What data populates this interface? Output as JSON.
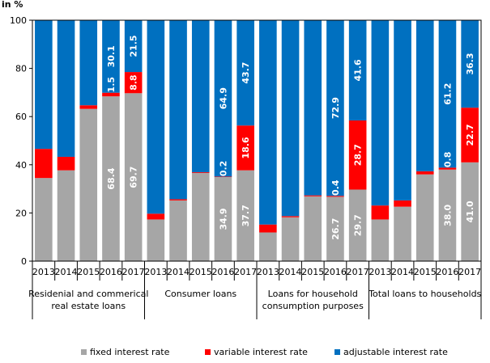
{
  "chart_data": {
    "type": "bar",
    "stacked": true,
    "unit_label": "in %",
    "ylim": [
      0,
      100
    ],
    "yticks": [
      0,
      20,
      40,
      60,
      80,
      100
    ],
    "grid": false,
    "legend_position": "bottom",
    "groups": [
      {
        "label": "Residenial and commerical real estate loans",
        "label_lines": [
          "Residenial and commerical",
          "real estate loans"
        ],
        "categories": [
          "2013",
          "2014",
          "2015",
          "2016",
          "2017"
        ]
      },
      {
        "label": "Consumer loans",
        "label_lines": [
          "Consumer loans"
        ],
        "categories": [
          "2013",
          "2014",
          "2015",
          "2016",
          "2017"
        ]
      },
      {
        "label": "Loans for household consumption purposes",
        "label_lines": [
          "Loans for household",
          "consumption purposes"
        ],
        "categories": [
          "2013",
          "2014",
          "2015",
          "2016",
          "2017"
        ]
      },
      {
        "label": "Total loans to households",
        "label_lines": [
          "Total loans to households"
        ],
        "categories": [
          "2013",
          "2014",
          "2015",
          "2016",
          "2017"
        ]
      }
    ],
    "series": [
      {
        "name": "fixed interest rate",
        "color": "#a6a6a6",
        "values": [
          34.5,
          37.7,
          63.2,
          68.4,
          69.7,
          17.3,
          25.2,
          36.6,
          34.9,
          37.7,
          11.9,
          18.2,
          26.9,
          26.7,
          29.7,
          17.3,
          22.6,
          36.0,
          38.0,
          41.0
        ]
      },
      {
        "name": "variable interest rate",
        "color": "#ff0000",
        "values": [
          12.1,
          5.6,
          1.5,
          1.5,
          8.8,
          2.4,
          0.5,
          0.3,
          0.2,
          18.6,
          3.3,
          0.5,
          0.4,
          0.4,
          28.7,
          5.8,
          2.6,
          1.3,
          0.8,
          22.7
        ]
      },
      {
        "name": "adjustable interest rate",
        "color": "#0070c0",
        "values": [
          53.4,
          56.7,
          35.3,
          30.1,
          21.5,
          80.3,
          74.3,
          63.1,
          64.9,
          43.7,
          84.8,
          81.3,
          72.7,
          72.9,
          41.6,
          76.9,
          74.8,
          62.7,
          61.2,
          36.3
        ]
      }
    ],
    "data_labels": [
      {
        "series": 0,
        "index": 3,
        "text": "68.4"
      },
      {
        "series": 0,
        "index": 4,
        "text": "69.7"
      },
      {
        "series": 1,
        "index": 3,
        "text": "1.5"
      },
      {
        "series": 1,
        "index": 4,
        "text": "8.8"
      },
      {
        "series": 2,
        "index": 3,
        "text": "30.1"
      },
      {
        "series": 2,
        "index": 4,
        "text": "21.5"
      },
      {
        "series": 0,
        "index": 8,
        "text": "34.9"
      },
      {
        "series": 0,
        "index": 9,
        "text": "37.7"
      },
      {
        "series": 1,
        "index": 8,
        "text": "0.2"
      },
      {
        "series": 1,
        "index": 9,
        "text": "18.6"
      },
      {
        "series": 2,
        "index": 8,
        "text": "64.9"
      },
      {
        "series": 2,
        "index": 9,
        "text": "43.7"
      },
      {
        "series": 0,
        "index": 13,
        "text": "26.7"
      },
      {
        "series": 0,
        "index": 14,
        "text": "29.7"
      },
      {
        "series": 1,
        "index": 13,
        "text": "0.4"
      },
      {
        "series": 1,
        "index": 14,
        "text": "28.7"
      },
      {
        "series": 2,
        "index": 13,
        "text": "72.9"
      },
      {
        "series": 2,
        "index": 14,
        "text": "41.6"
      },
      {
        "series": 0,
        "index": 18,
        "text": "38.0"
      },
      {
        "series": 0,
        "index": 19,
        "text": "41.0"
      },
      {
        "series": 1,
        "index": 18,
        "text": "0.8"
      },
      {
        "series": 1,
        "index": 19,
        "text": "22.7"
      },
      {
        "series": 2,
        "index": 18,
        "text": "61.2"
      },
      {
        "series": 2,
        "index": 19,
        "text": "36.3"
      }
    ]
  }
}
